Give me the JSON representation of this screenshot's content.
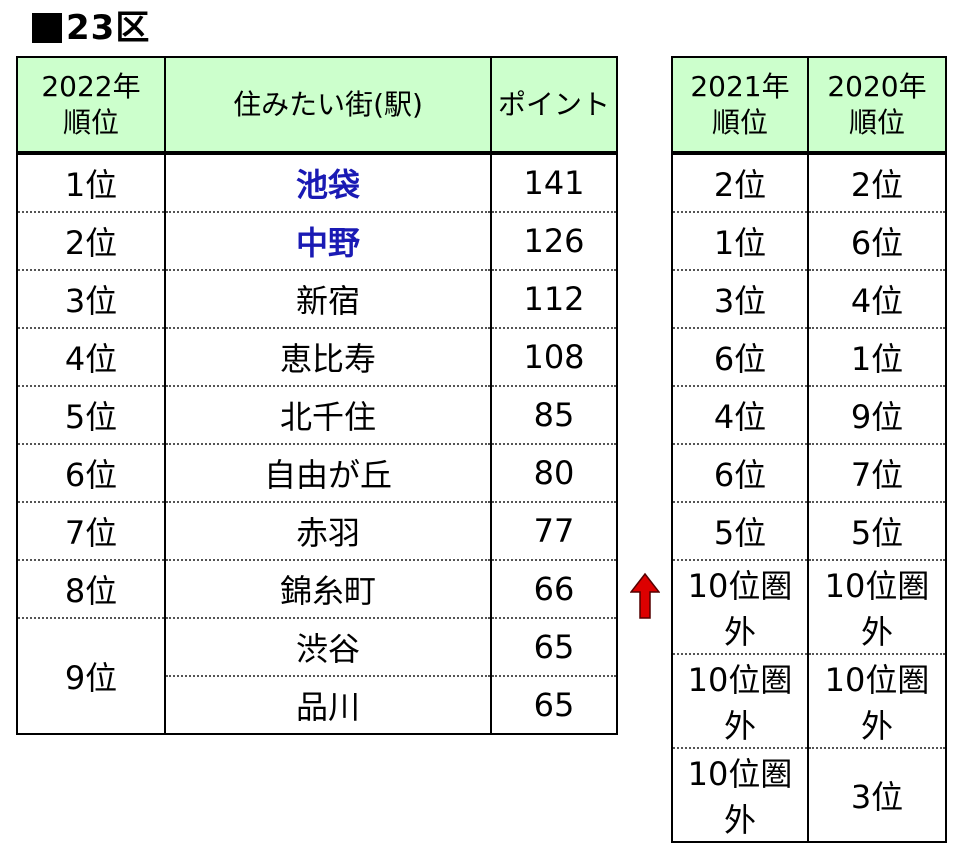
{
  "title": "23区",
  "main_table": {
    "headers": [
      {
        "line1": "2022年",
        "line2": "順位"
      },
      {
        "line1": "住みたい街(駅)",
        "line2": ""
      },
      {
        "line1": "ポイント",
        "line2": ""
      }
    ],
    "rows": [
      {
        "rank": "1位",
        "station": "池袋",
        "points": "141"
      },
      {
        "rank": "2位",
        "station": "中野",
        "points": "126"
      },
      {
        "rank": "3位",
        "station": "新宿",
        "points": "112"
      },
      {
        "rank": "4位",
        "station": "恵比寿",
        "points": "108"
      },
      {
        "rank": "5位",
        "station": "北千住",
        "points": "85"
      },
      {
        "rank": "6位",
        "station": "自由が丘",
        "points": "80"
      },
      {
        "rank": "7位",
        "station": "赤羽",
        "points": "77"
      },
      {
        "rank": "8位",
        "station": "錦糸町",
        "points": "66"
      },
      {
        "rank": "9位",
        "station": "渋谷",
        "points": "65"
      },
      {
        "rank": "",
        "station": "品川",
        "points": "65"
      }
    ]
  },
  "side_table": {
    "headers": [
      {
        "line1": "2021年",
        "line2": "順位"
      },
      {
        "line1": "2020年",
        "line2": "順位"
      }
    ],
    "rows": [
      {
        "y2021": "2位",
        "y2020": "2位"
      },
      {
        "y2021": "1位",
        "y2020": "6位"
      },
      {
        "y2021": "3位",
        "y2020": "4位"
      },
      {
        "y2021": "6位",
        "y2020": "1位"
      },
      {
        "y2021": "4位",
        "y2020": "9位"
      },
      {
        "y2021": "6位",
        "y2020": "7位"
      },
      {
        "y2021": "5位",
        "y2020": "5位"
      },
      {
        "y2021": "10位圏外",
        "y2020": "10位圏外"
      },
      {
        "y2021": "10位圏外",
        "y2020": "10位圏外"
      },
      {
        "y2021": "10位圏外",
        "y2020": "3位"
      }
    ]
  },
  "arrow": {
    "icon": "red-up-arrow-icon",
    "color": "#dd0000"
  },
  "colors": {
    "header_bg": "#ccffcc",
    "highlight_text": "#1a1ab4"
  }
}
